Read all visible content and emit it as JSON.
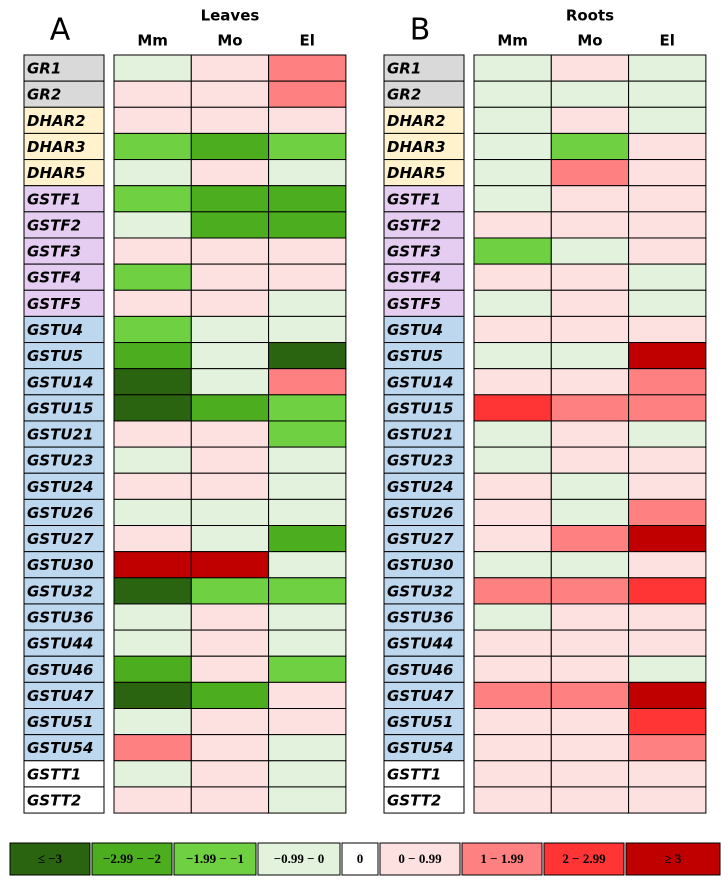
{
  "legend": [
    {
      "label": "≤ −3",
      "color": "#2b6410"
    },
    {
      "label": "−2.99 − −2",
      "color": "#4cae1e"
    },
    {
      "label": "−1.99 − −1",
      "color": "#6fd042"
    },
    {
      "label": "−0.99 − 0",
      "color": "#e3f2dc"
    },
    {
      "label": "0",
      "color": "#ffffff"
    },
    {
      "label": "0 − 0.99",
      "color": "#fde0e0"
    },
    {
      "label": "1 − 1.99",
      "color": "#ff8080"
    },
    {
      "label": "2 − 2.99",
      "color": "#ff3434"
    },
    {
      "label": "≥ 3",
      "color": "#c00000"
    }
  ],
  "genes": [
    {
      "label": "GR1",
      "color": "#d9d9d9"
    },
    {
      "label": "GR2",
      "color": "#d9d9d9"
    },
    {
      "label": "DHAR2",
      "color": "#fff2cc"
    },
    {
      "label": "DHAR3",
      "color": "#fff2cc"
    },
    {
      "label": "DHAR5",
      "color": "#fff2cc"
    },
    {
      "label": "GSTF1",
      "color": "#e4cdf0"
    },
    {
      "label": "GSTF2",
      "color": "#e4cdf0"
    },
    {
      "label": "GSTF3",
      "color": "#e4cdf0"
    },
    {
      "label": "GSTF4",
      "color": "#e4cdf0"
    },
    {
      "label": "GSTF5",
      "color": "#e4cdf0"
    },
    {
      "label": "GSTU4",
      "color": "#bdd7ee"
    },
    {
      "label": "GSTU5",
      "color": "#bdd7ee"
    },
    {
      "label": "GSTU14",
      "color": "#bdd7ee"
    },
    {
      "label": "GSTU15",
      "color": "#bdd7ee"
    },
    {
      "label": "GSTU21",
      "color": "#bdd7ee"
    },
    {
      "label": "GSTU23",
      "color": "#bdd7ee"
    },
    {
      "label": "GSTU24",
      "color": "#bdd7ee"
    },
    {
      "label": "GSTU26",
      "color": "#bdd7ee"
    },
    {
      "label": "GSTU27",
      "color": "#bdd7ee"
    },
    {
      "label": "GSTU30",
      "color": "#bdd7ee"
    },
    {
      "label": "GSTU32",
      "color": "#bdd7ee"
    },
    {
      "label": "GSTU36",
      "color": "#bdd7ee"
    },
    {
      "label": "GSTU44",
      "color": "#bdd7ee"
    },
    {
      "label": "GSTU46",
      "color": "#bdd7ee"
    },
    {
      "label": "GSTU47",
      "color": "#bdd7ee"
    },
    {
      "label": "GSTU51",
      "color": "#bdd7ee"
    },
    {
      "label": "GSTU54",
      "color": "#bdd7ee"
    },
    {
      "label": "GSTT1",
      "color": "#ffffff"
    },
    {
      "label": "GSTT2",
      "color": "#ffffff"
    }
  ],
  "panels": [
    {
      "letter": "A",
      "tissue": "Leaves",
      "columns": [
        "Mm",
        "Mo",
        "El"
      ],
      "cells": [
        [
          3,
          5,
          6
        ],
        [
          5,
          5,
          6
        ],
        [
          5,
          5,
          5
        ],
        [
          2,
          1,
          2
        ],
        [
          3,
          5,
          3
        ],
        [
          2,
          1,
          1
        ],
        [
          3,
          1,
          1
        ],
        [
          5,
          5,
          5
        ],
        [
          2,
          5,
          5
        ],
        [
          5,
          5,
          3
        ],
        [
          2,
          3,
          3
        ],
        [
          1,
          3,
          0
        ],
        [
          0,
          3,
          6
        ],
        [
          0,
          1,
          2
        ],
        [
          5,
          5,
          2
        ],
        [
          3,
          5,
          3
        ],
        [
          5,
          5,
          3
        ],
        [
          3,
          3,
          3
        ],
        [
          5,
          3,
          1
        ],
        [
          8,
          8,
          3
        ],
        [
          0,
          2,
          2
        ],
        [
          3,
          5,
          3
        ],
        [
          3,
          5,
          3
        ],
        [
          1,
          5,
          2
        ],
        [
          0,
          1,
          5
        ],
        [
          3,
          5,
          5
        ],
        [
          6,
          5,
          3
        ],
        [
          3,
          5,
          3
        ],
        [
          5,
          5,
          3
        ]
      ]
    },
    {
      "letter": "B",
      "tissue": "Roots",
      "columns": [
        "Mm",
        "Mo",
        "El"
      ],
      "cells": [
        [
          3,
          5,
          3
        ],
        [
          3,
          3,
          3
        ],
        [
          3,
          5,
          3
        ],
        [
          3,
          2,
          5
        ],
        [
          3,
          6,
          5
        ],
        [
          3,
          5,
          5
        ],
        [
          5,
          5,
          5
        ],
        [
          2,
          3,
          5
        ],
        [
          5,
          5,
          3
        ],
        [
          3,
          5,
          3
        ],
        [
          5,
          5,
          5
        ],
        [
          3,
          3,
          8
        ],
        [
          5,
          5,
          6
        ],
        [
          7,
          6,
          6
        ],
        [
          3,
          5,
          3
        ],
        [
          3,
          5,
          5
        ],
        [
          5,
          3,
          5
        ],
        [
          5,
          3,
          6
        ],
        [
          5,
          6,
          8
        ],
        [
          3,
          3,
          5
        ],
        [
          6,
          6,
          7
        ],
        [
          3,
          5,
          5
        ],
        [
          5,
          5,
          5
        ],
        [
          5,
          5,
          3
        ],
        [
          6,
          6,
          8
        ],
        [
          5,
          5,
          7
        ],
        [
          5,
          5,
          6
        ],
        [
          5,
          5,
          5
        ],
        [
          5,
          5,
          5
        ]
      ]
    }
  ]
}
